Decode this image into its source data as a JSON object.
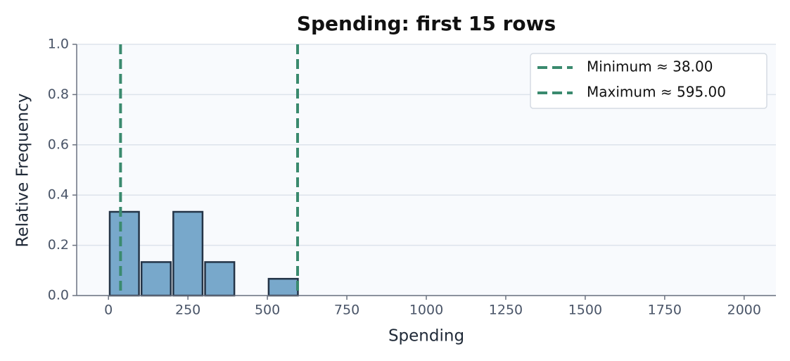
{
  "chart_data": {
    "type": "histogram",
    "title": "Spending: first 15 rows",
    "xlabel": "Spending",
    "ylabel": "Relative Frequency",
    "bins": [
      0,
      100,
      200,
      300,
      400,
      500,
      600
    ],
    "values": [
      0.3333,
      0.1333,
      0.3333,
      0.1333,
      0,
      0.0667
    ],
    "color": "#78a8cb",
    "edgecolor": "#243447",
    "xlim": [
      -100,
      2100
    ],
    "ylim": [
      0,
      1
    ],
    "xticks": [
      0,
      250,
      500,
      750,
      1000,
      1250,
      1500,
      1750,
      2000
    ],
    "yticks": [
      {
        "value": 0,
        "label": "0.0"
      },
      0.2,
      0.4,
      0.6,
      0.8,
      {
        "value": 1,
        "label": "1.0"
      }
    ],
    "grid": true,
    "legend": "upper right",
    "reference_lines": [
      {
        "name": "Minimum ≈ 38.00",
        "value": 38,
        "color": "#3a8a6e"
      },
      {
        "name": "Maximum ≈ 595.00",
        "value": 595,
        "color": "#3a8a6e"
      }
    ]
  }
}
